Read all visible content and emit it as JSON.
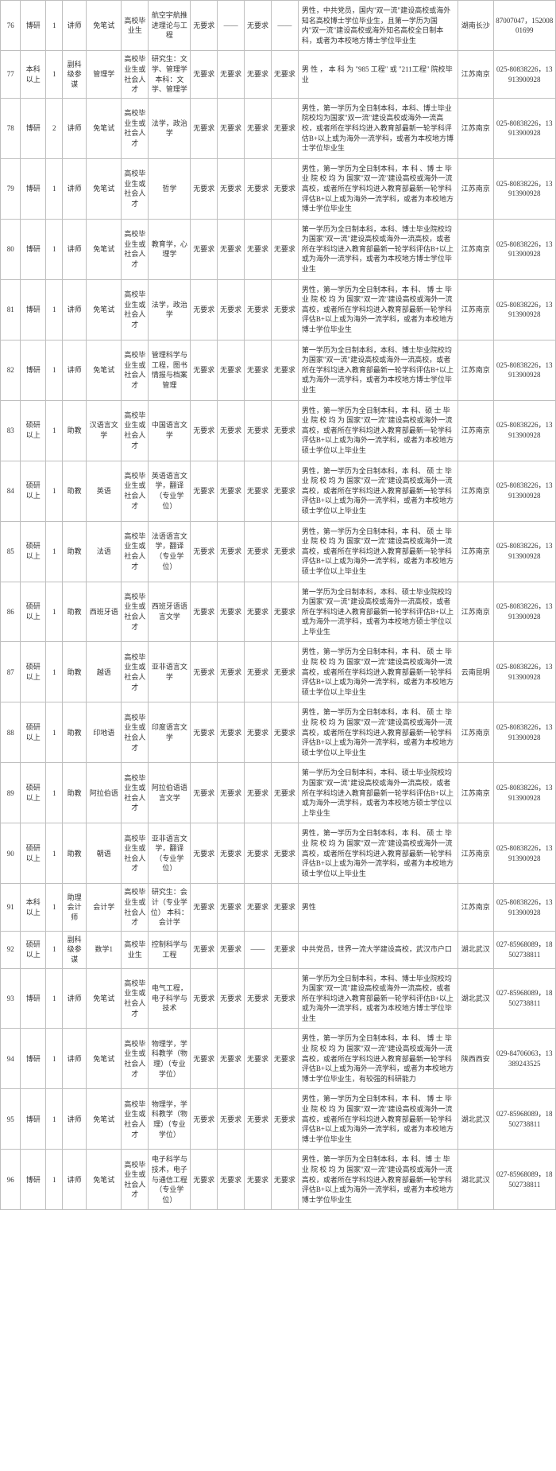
{
  "rows": [
    {
      "idx": "76",
      "edu": "博研",
      "num": "1",
      "pos": "讲师",
      "major": "免笔试",
      "src": "高校毕业生",
      "field": "航空宇航推进理论与工程",
      "r1": "无要求",
      "r2": "——",
      "r3": "无要求",
      "r4": "——",
      "desc": "男性，中共党员，国内\"双一流\"建设高校或海外知名高校博士学位毕业生，且第一学历为国内\"双一流\"建设高校或海外知名高校全日制本科，或者为本校地方博士学位毕业生",
      "loc": "湖南长沙",
      "phone": "87007047，15200801699"
    },
    {
      "idx": "77",
      "edu": "本科以上",
      "num": "1",
      "pos": "副科级参谋",
      "major": "管理学",
      "src": "高校毕业生或社会人才",
      "field": "研究生：文学、管理学 本科：文学、管理学",
      "r1": "无要求",
      "r2": "无要求",
      "r3": "无要求",
      "r4": "无要求",
      "desc": "男 性 ， 本 科 为 \"985 工程\" 或 \"211工程\" 院校毕业",
      "loc": "江苏南京",
      "phone": "025-80838226，13913900928"
    },
    {
      "idx": "78",
      "edu": "博研",
      "num": "2",
      "pos": "讲师",
      "major": "免笔试",
      "src": "高校毕业生或社会人才",
      "field": "法学，政治学",
      "r1": "无要求",
      "r2": "无要求",
      "r3": "无要求",
      "r4": "无要求",
      "desc": "男性，第一学历为全日制本科，本科、博士毕业院校均为国家\"双一流\"建设高校或海外一流高校，或者所在学科均进入教育部最新一轮学科评估B+以上或为海外一流学科，或者为本校地方博士学位毕业生",
      "loc": "江苏南京",
      "phone": "025-80838226，13913900928"
    },
    {
      "idx": "79",
      "edu": "博研",
      "num": "1",
      "pos": "讲师",
      "major": "免笔试",
      "src": "高校毕业生或社会人才",
      "field": "哲学",
      "r1": "无要求",
      "r2": "无要求",
      "r3": "无要求",
      "r4": "无要求",
      "desc": "男性，第一学历为全日制本科，本 科 、博 士 毕 业 院 校 均 为 国家\"双一流\"建设高校或海外一流高校，或者所在学科均进入教育部最新一轮学科评估B+以上或为海外一流学科，或者为本校地方博士学位毕业生",
      "loc": "江苏南京",
      "phone": "025-80838226，13913900928"
    },
    {
      "idx": "80",
      "edu": "博研",
      "num": "1",
      "pos": "讲师",
      "major": "免笔试",
      "src": "高校毕业生或社会人才",
      "field": "教育学，心理学",
      "r1": "无要求",
      "r2": "无要求",
      "r3": "无要求",
      "r4": "无要求",
      "desc": "第一学历为全日制本科，本科、博士毕业院校均为国家\"双一流\"建设高校或海外一流高校，或者所在学科均进入教育部最新一轮学科评估B+以上或为海外一流学科，或者为本校地方博士学位毕业生",
      "loc": "江苏南京",
      "phone": "025-80838226，13913900928"
    },
    {
      "idx": "81",
      "edu": "博研",
      "num": "1",
      "pos": "讲师",
      "major": "免笔试",
      "src": "高校毕业生或社会人才",
      "field": "法学，政治学",
      "r1": "无要求",
      "r2": "无要求",
      "r3": "无要求",
      "r4": "无要求",
      "desc": "男性，第一学历为全日制本科，本 科、 博 士 毕 业 院 校 均 为 国家\"双一流\"建设高校或海外一流高校，或者所在学科均进入教育部最新一轮学科评估B+以上或为海外一流学科，或者为本校地方博士学位毕业生",
      "loc": "江苏南京",
      "phone": "025-80838226，13913900928"
    },
    {
      "idx": "82",
      "edu": "博研",
      "num": "1",
      "pos": "讲师",
      "major": "免笔试",
      "src": "高校毕业生或社会人才",
      "field": "管理科学与工程，图书情报与档案管理",
      "r1": "无要求",
      "r2": "无要求",
      "r3": "无要求",
      "r4": "无要求",
      "desc": "第一学历为全日制本科，本科、博士毕业院校均为国家\"双一流\"建设高校或海外一流高校，或者所在学科均进入教育部最新一轮学科评估B+以上或为海外一流学科，或者为本校地方博士学位毕业生",
      "loc": "江苏南京",
      "phone": "025-80838226，13913900928"
    },
    {
      "idx": "83",
      "edu": "硕研以上",
      "num": "1",
      "pos": "助教",
      "major": "汉语言文学",
      "src": "高校毕业生或社会人才",
      "field": "中国语言文学",
      "r1": "无要求",
      "r2": "无要求",
      "r3": "无要求",
      "r4": "无要求",
      "desc": "男性，第一学历为全日制本科，本 科、硕 士 毕 业 院 校 均 为 国家\"双一流\"建设高校或海外一流高校，或者所在学科均进入教育部最新一轮学科评估B+以上或为海外一流学科，或者为本校地方硕士学位以上毕业生",
      "loc": "江苏南京",
      "phone": "025-80838226，13913900928"
    },
    {
      "idx": "84",
      "edu": "硕研以上",
      "num": "1",
      "pos": "助教",
      "major": "英语",
      "src": "高校毕业生或社会人才",
      "field": "英语语言文学，翻译（专业学位）",
      "r1": "无要求",
      "r2": "无要求",
      "r3": "无要求",
      "r4": "无要求",
      "desc": "男性，第一学历为全日制本科，本 科、 硕 士 毕 业 院 校 均 为 国家\"双一流\"建设高校或海外一流高校，或者所在学科均进入教育部最新一轮学科评估B+以上或为海外一流学科，或者为本校地方硕士学位以上毕业生",
      "loc": "江苏南京",
      "phone": "025-80838226，13913900928"
    },
    {
      "idx": "85",
      "edu": "硕研以上",
      "num": "1",
      "pos": "助教",
      "major": "法语",
      "src": "高校毕业生或社会人才",
      "field": "法语语言文学，翻译（专业学位）",
      "r1": "无要求",
      "r2": "无要求",
      "r3": "无要求",
      "r4": "无要求",
      "desc": "男性，第一学历为全日制本科，本 科、 硕 士 毕 业 院 校 均 为 国家\"双一流\"建设高校或海外一流高校，或者所在学科均进入教育部最新一轮学科评估B+以上或为海外一流学科，或者为本校地方硕士学位以上毕业生",
      "loc": "江苏南京",
      "phone": "025-80838226，13913900928"
    },
    {
      "idx": "86",
      "edu": "硕研以上",
      "num": "1",
      "pos": "助教",
      "major": "西班牙语",
      "src": "高校毕业生或社会人才",
      "field": "西班牙语语言文学",
      "r1": "无要求",
      "r2": "无要求",
      "r3": "无要求",
      "r4": "无要求",
      "desc": "第一学历为全日制本科，本科、硕士毕业院校均为国家\"双一流\"建设高校或海外一流高校，或者所在学科均进入教育部最新一轮学科评估B+以上或为海外一流学科，或者为本校地方硕士学位以上毕业生",
      "loc": "江苏南京",
      "phone": "025-80838226，13913900928"
    },
    {
      "idx": "87",
      "edu": "硕研以上",
      "num": "1",
      "pos": "助教",
      "major": "越语",
      "src": "高校毕业生或社会人才",
      "field": "亚非语言文学",
      "r1": "无要求",
      "r2": "无要求",
      "r3": "无要求",
      "r4": "无要求",
      "desc": "男性，第一学历为全日制本科，本 科、 硕 士 毕 业 院 校 均 为 国家\"双一流\"建设高校或海外一流高校，或者所在学科均进入教育部最新一轮学科评估B+以上或为海外一流学科，或者为本校地方硕士学位以上毕业生",
      "loc": "云南昆明",
      "phone": "025-80838226，13913900928"
    },
    {
      "idx": "88",
      "edu": "硕研以上",
      "num": "1",
      "pos": "助教",
      "major": "印地语",
      "src": "高校毕业生或社会人才",
      "field": "印度语言文学",
      "r1": "无要求",
      "r2": "无要求",
      "r3": "无要求",
      "r4": "无要求",
      "desc": "男性，第一学历为全日制本科，本 科、 硕 士 毕 业 院 校 均 为 国家\"双一流\"建设高校或海外一流高校，或者所在学科均进入教育部最新一轮学科评估B+以上或为海外一流学科，或者为本校地方硕士学位以上毕业生",
      "loc": "江苏南京",
      "phone": "025-80838226，13913900928"
    },
    {
      "idx": "89",
      "edu": "硕研以上",
      "num": "1",
      "pos": "助教",
      "major": "阿拉伯语",
      "src": "高校毕业生或社会人才",
      "field": "阿拉伯语语言文学",
      "r1": "无要求",
      "r2": "无要求",
      "r3": "无要求",
      "r4": "无要求",
      "desc": "第一学历为全日制本科，本科、硕士毕业院校均为国家\"双一流\"建设高校或海外一流高校，或者所在学科均进入教育部最新一轮学科评估B+以上或为海外一流学科，或者为本校地方硕士学位以上毕业生",
      "loc": "江苏南京",
      "phone": "025-80838226，13913900928"
    },
    {
      "idx": "90",
      "edu": "硕研以上",
      "num": "1",
      "pos": "助教",
      "major": "朝语",
      "src": "高校毕业生或社会人才",
      "field": "亚非语言文学，翻译（专业学位）",
      "r1": "无要求",
      "r2": "无要求",
      "r3": "无要求",
      "r4": "无要求",
      "desc": "男性，第一学历为全日制本科，本 科、 硕 士 毕 业 院 校 均 为 国家\"双一流\"建设高校或海外一流高校，或者所在学科均进入教育部最新一轮学科评估B+以上或为海外一流学科，或者为本校地方硕士学位以上毕业生",
      "loc": "江苏南京",
      "phone": "025-80838226，13913900928"
    },
    {
      "idx": "91",
      "edu": "本科以上",
      "num": "1",
      "pos": "助理会计师",
      "major": "会计学",
      "src": "高校毕业生或社会人才",
      "field": "研究生：会计（专业学位） 本科：会计学",
      "r1": "无要求",
      "r2": "无要求",
      "r3": "无要求",
      "r4": "无要求",
      "desc": "男性",
      "loc": "江苏南京",
      "phone": "025-80838226，13913900928"
    },
    {
      "idx": "92",
      "edu": "硕研以上",
      "num": "1",
      "pos": "副科级参谋",
      "major": "数学1",
      "src": "高校毕业生",
      "field": "控制科学与工程",
      "r1": "无要求",
      "r2": "无要求",
      "r3": "——",
      "r4": "无要求",
      "desc": "中共党员，世界一流大学建设高校，武汉市户口",
      "loc": "湖北武汉",
      "phone": "027-85968089，18502738811"
    },
    {
      "idx": "93",
      "edu": "博研",
      "num": "1",
      "pos": "讲师",
      "major": "免笔试",
      "src": "高校毕业生或社会人才",
      "field": "电气工程，电子科学与技术",
      "r1": "无要求",
      "r2": "无要求",
      "r3": "无要求",
      "r4": "无要求",
      "desc": "第一学历为全日制本科，本科、博士毕业院校均为国家\"双一流\"建设高校或海外一流高校，或者所在学科均进入教育部最新一轮学科评估B+以上或为海外一流学科，或者为本校地方博士学位毕业生",
      "loc": "湖北武汉",
      "phone": "027-85968089，18502738811"
    },
    {
      "idx": "94",
      "edu": "博研",
      "num": "1",
      "pos": "讲师",
      "major": "免笔试",
      "src": "高校毕业生或社会人才",
      "field": "物理学，学科教学（物理）（专业学位）",
      "r1": "无要求",
      "r2": "无要求",
      "r3": "无要求",
      "r4": "无要求",
      "desc": "男性，第一学历为全日制本科，本 科、 博 士 毕 业 院 校 均 为 国家\"双一流\"建设高校或海外一流高校，或者所在学科均进入教育部最新一轮学科评估B+以上或为海外一流学科，或者为本校地方博士学位毕业生，有较强的科研能力",
      "loc": "陕西西安",
      "phone": "029-84706063，13389243525"
    },
    {
      "idx": "95",
      "edu": "博研",
      "num": "1",
      "pos": "讲师",
      "major": "免笔试",
      "src": "高校毕业生或社会人才",
      "field": "物理学，学科教学（物理）（专业学位）",
      "r1": "无要求",
      "r2": "无要求",
      "r3": "无要求",
      "r4": "无要求",
      "desc": "男性，第一学历为全日制本科，本 科、 博 士 毕 业 院 校 均 为 国家\"双一流\"建设高校或海外一流高校，或者所在学科均进入教育部最新一轮学科评估B+以上或为海外一流学科，或者为本校地方博士学位毕业生",
      "loc": "湖北武汉",
      "phone": "027-85968089，18502738811"
    },
    {
      "idx": "96",
      "edu": "博研",
      "num": "1",
      "pos": "讲师",
      "major": "免笔试",
      "src": "高校毕业生或社会人才",
      "field": "电子科学与技术，电子与通信工程（专业学位）",
      "r1": "无要求",
      "r2": "无要求",
      "r3": "无要求",
      "r4": "无要求",
      "desc": "男性，第一学历为全日制本科，本 科、博 士 毕 业 院 校 均 为 国家\"双一流\"建设高校或海外一流高校，或者所在学科均进入教育部最新一轮学科评估B+以上或为海外一流学科，或者为本校地方博士学位毕业生",
      "loc": "湖北武汉",
      "phone": "027-85968089，18502738811"
    }
  ]
}
